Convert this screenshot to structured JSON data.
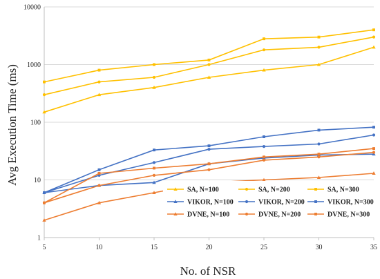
{
  "chart_data": {
    "type": "line",
    "xlabel": "No. of NSR",
    "ylabel": "Avg Execution Time (ms)",
    "yscale": "log",
    "ylim": [
      1,
      10000
    ],
    "xlim": [
      5,
      35
    ],
    "grid": true,
    "legend_position": "bottom-right",
    "x": [
      5,
      10,
      15,
      20,
      25,
      30,
      35
    ],
    "x_ticks": [
      5,
      10,
      15,
      20,
      25,
      30,
      35
    ],
    "y_ticks": [
      {
        "value": 1,
        "label": "1"
      },
      {
        "value": 10,
        "label": "10"
      },
      {
        "value": 100,
        "label": "100"
      },
      {
        "value": 1000,
        "label": "1000"
      },
      {
        "value": 10000,
        "label": "10000"
      }
    ],
    "series": [
      {
        "name": "SA, N=100",
        "color": "#ffc000",
        "marker": "triangle",
        "values": [
          150,
          300,
          400,
          600,
          800,
          1000,
          2000
        ]
      },
      {
        "name": "VIKOR, N=100",
        "color": "#4472c4",
        "marker": "triangle",
        "values": [
          6,
          8,
          9,
          19,
          24,
          27,
          28
        ]
      },
      {
        "name": "DVNE, N=100",
        "color": "#ed7d31",
        "marker": "triangle",
        "values": [
          2,
          4,
          6,
          9,
          10,
          11,
          13
        ]
      },
      {
        "name": "SA, N=200",
        "color": "#ffc000",
        "marker": "circle",
        "values": [
          300,
          500,
          600,
          1000,
          1800,
          2000,
          3000
        ]
      },
      {
        "name": "VIKOR, N=200",
        "color": "#4472c4",
        "marker": "circle",
        "values": [
          6,
          12,
          20,
          34,
          38,
          42,
          60
        ]
      },
      {
        "name": "DVNE, N=200",
        "color": "#ed7d31",
        "marker": "circle",
        "values": [
          4,
          8,
          12,
          15,
          22,
          25,
          30
        ]
      },
      {
        "name": "SA, N=300",
        "color": "#ffc000",
        "marker": "square",
        "values": [
          500,
          800,
          1000,
          1200,
          2800,
          3000,
          4000
        ]
      },
      {
        "name": "VIKOR, N=300",
        "color": "#4472c4",
        "marker": "square",
        "values": [
          6,
          15,
          33,
          39,
          56,
          73,
          82
        ]
      },
      {
        "name": "DVNE, N=300",
        "color": "#ed7d31",
        "marker": "square",
        "values": [
          4,
          13,
          16,
          19,
          25,
          28,
          35
        ]
      }
    ]
  }
}
